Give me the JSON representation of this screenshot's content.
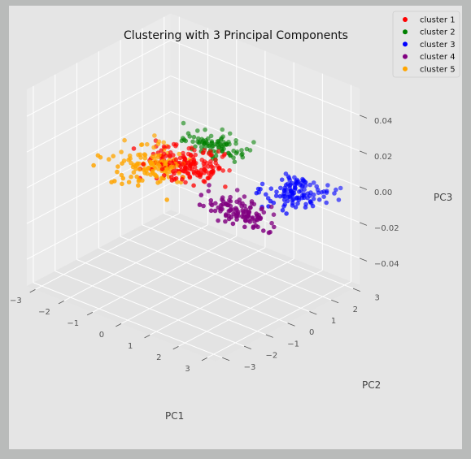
{
  "chart_data": {
    "type": "scatter",
    "title": "Clustering with 3 Principal Components",
    "xlabel": "PC1",
    "ylabel": "PC2",
    "zlabel": "PC3",
    "x_ticks": [
      "−3",
      "−2",
      "−1",
      "0",
      "1",
      "2",
      "3"
    ],
    "y_ticks": [
      "−3",
      "−2",
      "−1",
      "0",
      "1",
      "2",
      "3"
    ],
    "z_ticks": [
      "−0.04",
      "−0.02",
      "0.00",
      "0.02",
      "0.04"
    ],
    "xlim": [
      -3.3,
      3.3
    ],
    "ylim": [
      -3.3,
      3.3
    ],
    "zlim": [
      -0.055,
      0.055
    ],
    "legend_position": "top-right",
    "grid": true,
    "series": [
      {
        "name": "cluster 1",
        "color": "#ff0000",
        "center": [
          -1.0,
          1.0,
          0.0
        ],
        "spread": [
          0.6,
          0.55,
          0.002
        ],
        "count": 170
      },
      {
        "name": "cluster 2",
        "color": "#008000",
        "center": [
          -1.0,
          2.5,
          0.0
        ],
        "spread": [
          0.55,
          0.3,
          0.002
        ],
        "count": 90
      },
      {
        "name": "cluster 3",
        "color": "#0000ff",
        "center": [
          2.2,
          1.8,
          0.0
        ],
        "spread": [
          0.45,
          0.45,
          0.002
        ],
        "count": 120
      },
      {
        "name": "cluster 4",
        "color": "#800080",
        "center": [
          1.8,
          -0.3,
          0.0
        ],
        "spread": [
          0.55,
          0.35,
          0.002
        ],
        "count": 110
      },
      {
        "name": "cluster 5",
        "color": "#ffa500",
        "center": [
          -1.6,
          0.2,
          0.0
        ],
        "spread": [
          0.55,
          0.6,
          0.002
        ],
        "count": 130
      }
    ]
  }
}
